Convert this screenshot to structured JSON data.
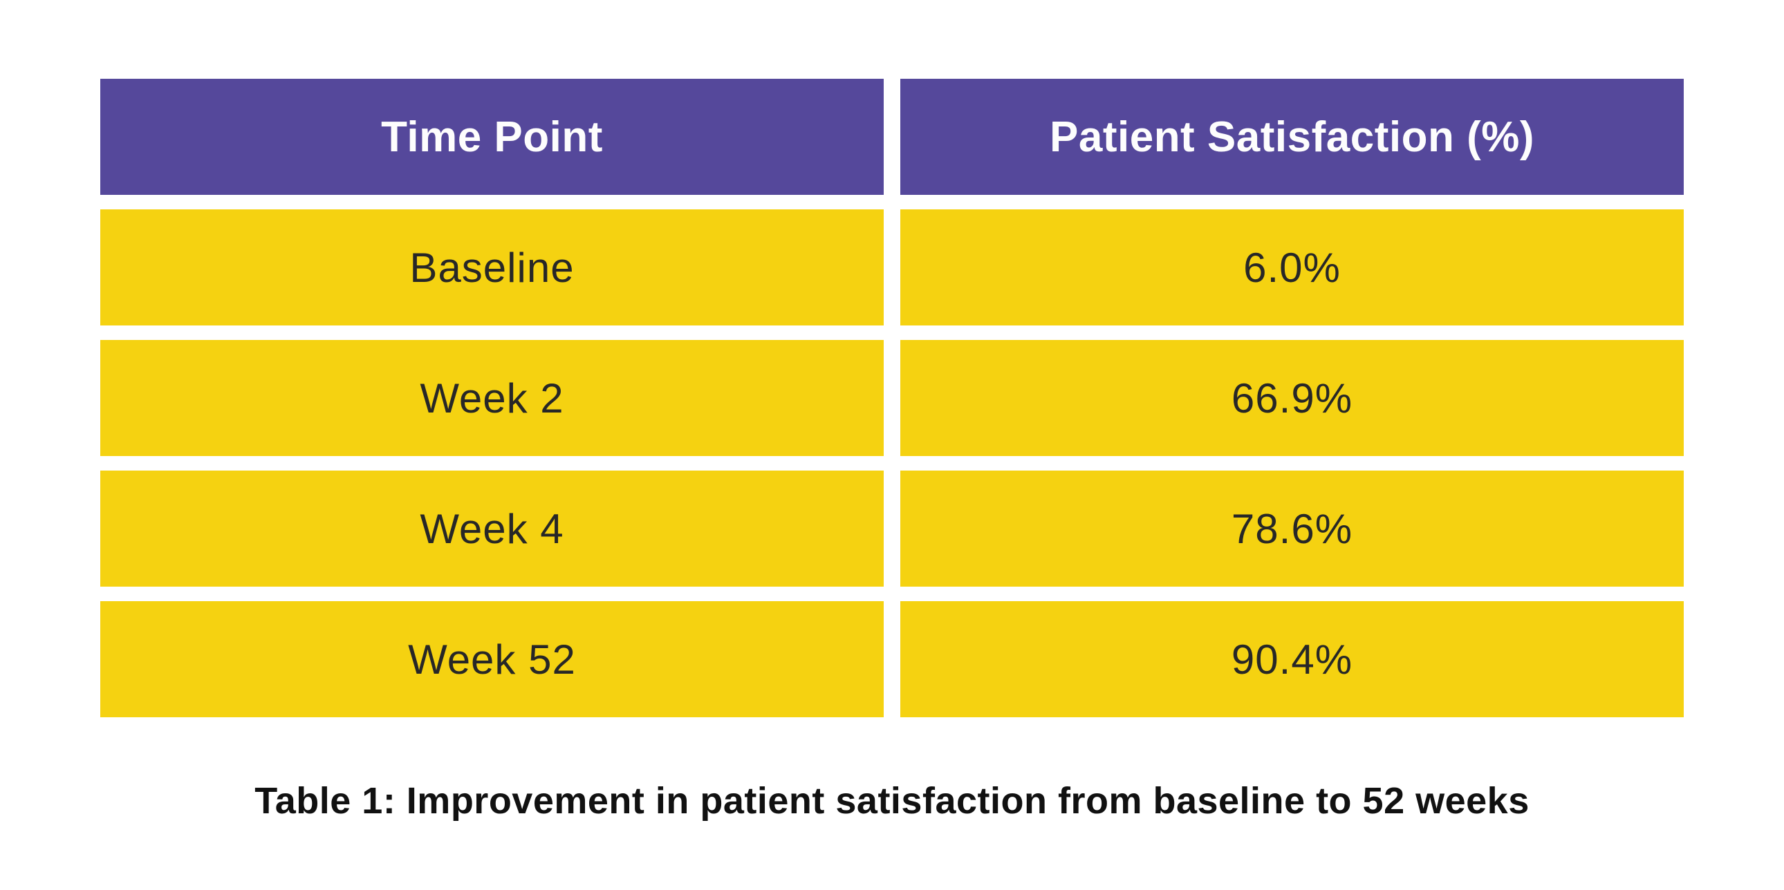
{
  "colors": {
    "header_bg": "#55489B",
    "header_text": "#FDFDFD",
    "row_bg": "#F5D211",
    "cell_text": "#272727",
    "caption_text": "#111111",
    "page_bg": "#FFFFFF"
  },
  "table": {
    "columns": [
      "Time Point",
      "Patient Satisfaction (%)"
    ],
    "rows": [
      {
        "time_point": "Baseline",
        "satisfaction": "6.0%"
      },
      {
        "time_point": "Week 2",
        "satisfaction": "66.9%"
      },
      {
        "time_point": "Week 4",
        "satisfaction": "78.6%"
      },
      {
        "time_point": "Week 52",
        "satisfaction": "90.4%"
      }
    ]
  },
  "caption": "Table 1: Improvement in patient satisfaction from baseline to 52 weeks",
  "chart_data": {
    "type": "table",
    "title": "Table 1: Improvement in patient satisfaction from baseline to 52 weeks",
    "columns": [
      "Time Point",
      "Patient Satisfaction (%)"
    ],
    "rows": [
      [
        "Baseline",
        6.0
      ],
      [
        "Week 2",
        66.9
      ],
      [
        "Week 4",
        78.6
      ],
      [
        "Week 52",
        90.4
      ]
    ],
    "ylabel": "Patient Satisfaction (%)",
    "value_range": [
      0,
      100
    ]
  }
}
